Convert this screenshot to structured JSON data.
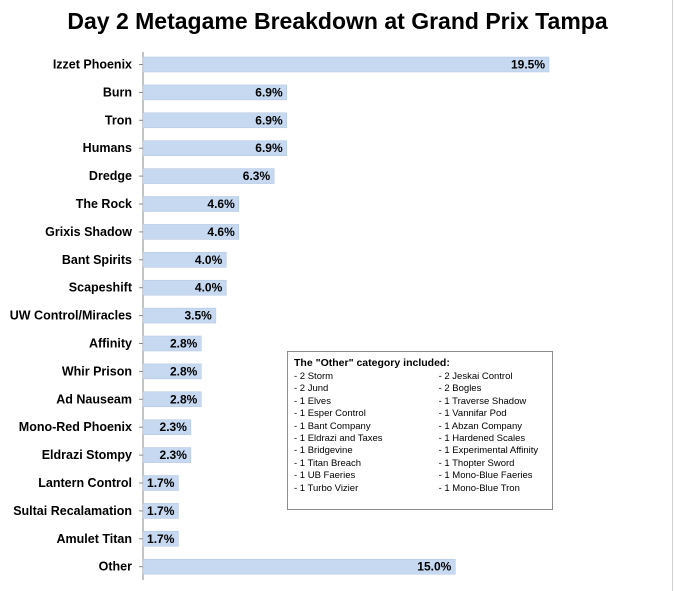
{
  "chart_data": {
    "type": "bar",
    "orientation": "horizontal",
    "title": "Day 2 Metagame Breakdown at Grand Prix Tampa",
    "xlabel": "",
    "ylabel": "",
    "xlim": [
      0,
      19.5
    ],
    "grid": false,
    "bar_color": "#c6d9f1",
    "categories": [
      "Izzet Phoenix",
      "Burn",
      "Tron",
      "Humans",
      "Dredge",
      "The Rock",
      "Grixis Shadow",
      "Bant Spirits",
      "Scapeshift",
      "UW Control/Miracles",
      "Affinity",
      "Whir Prison",
      "Ad Nauseam",
      "Mono-Red Phoenix",
      "Eldrazi Stompy",
      "Lantern Control",
      "Sultai Recalamation",
      "Amulet Titan",
      "Other"
    ],
    "values": [
      19.5,
      6.9,
      6.9,
      6.9,
      6.3,
      4.6,
      4.6,
      4.0,
      4.0,
      3.5,
      2.8,
      2.8,
      2.8,
      2.3,
      2.3,
      1.7,
      1.7,
      1.7,
      15.0
    ],
    "value_labels": [
      "19.5%",
      "6.9%",
      "6.9%",
      "6.9%",
      "6.3%",
      "4.6%",
      "4.6%",
      "4.0%",
      "4.0%",
      "3.5%",
      "2.8%",
      "2.8%",
      "2.8%",
      "2.3%",
      "2.3%",
      "1.7%",
      "1.7%",
      "1.7%",
      "15.0%"
    ]
  },
  "other_box": {
    "title": "The \"Other\" category included:",
    "left_column": [
      "- 2 Storm",
      "- 2 Jund",
      "- 1 Elves",
      "- 1 Esper Control",
      "- 1 Bant Company",
      "- 1 Eldrazi and Taxes",
      "- 1 Bridgevine",
      "- 1 Titan Breach",
      "- 1 UB Faeries",
      "- 1 Turbo Vizier"
    ],
    "right_column": [
      "- 2 Jeskai Control",
      "- 2 Bogles",
      "- 1 Traverse Shadow",
      "- 1 Vannifar Pod",
      "- 1 Abzan Company",
      "- 1 Hardened Scales",
      "- 1 Experimental Affinity",
      "- 1 Thopter Sword",
      "- 1 Mono-Blue Faeries",
      "- 1 Mono-Blue Tron"
    ]
  }
}
